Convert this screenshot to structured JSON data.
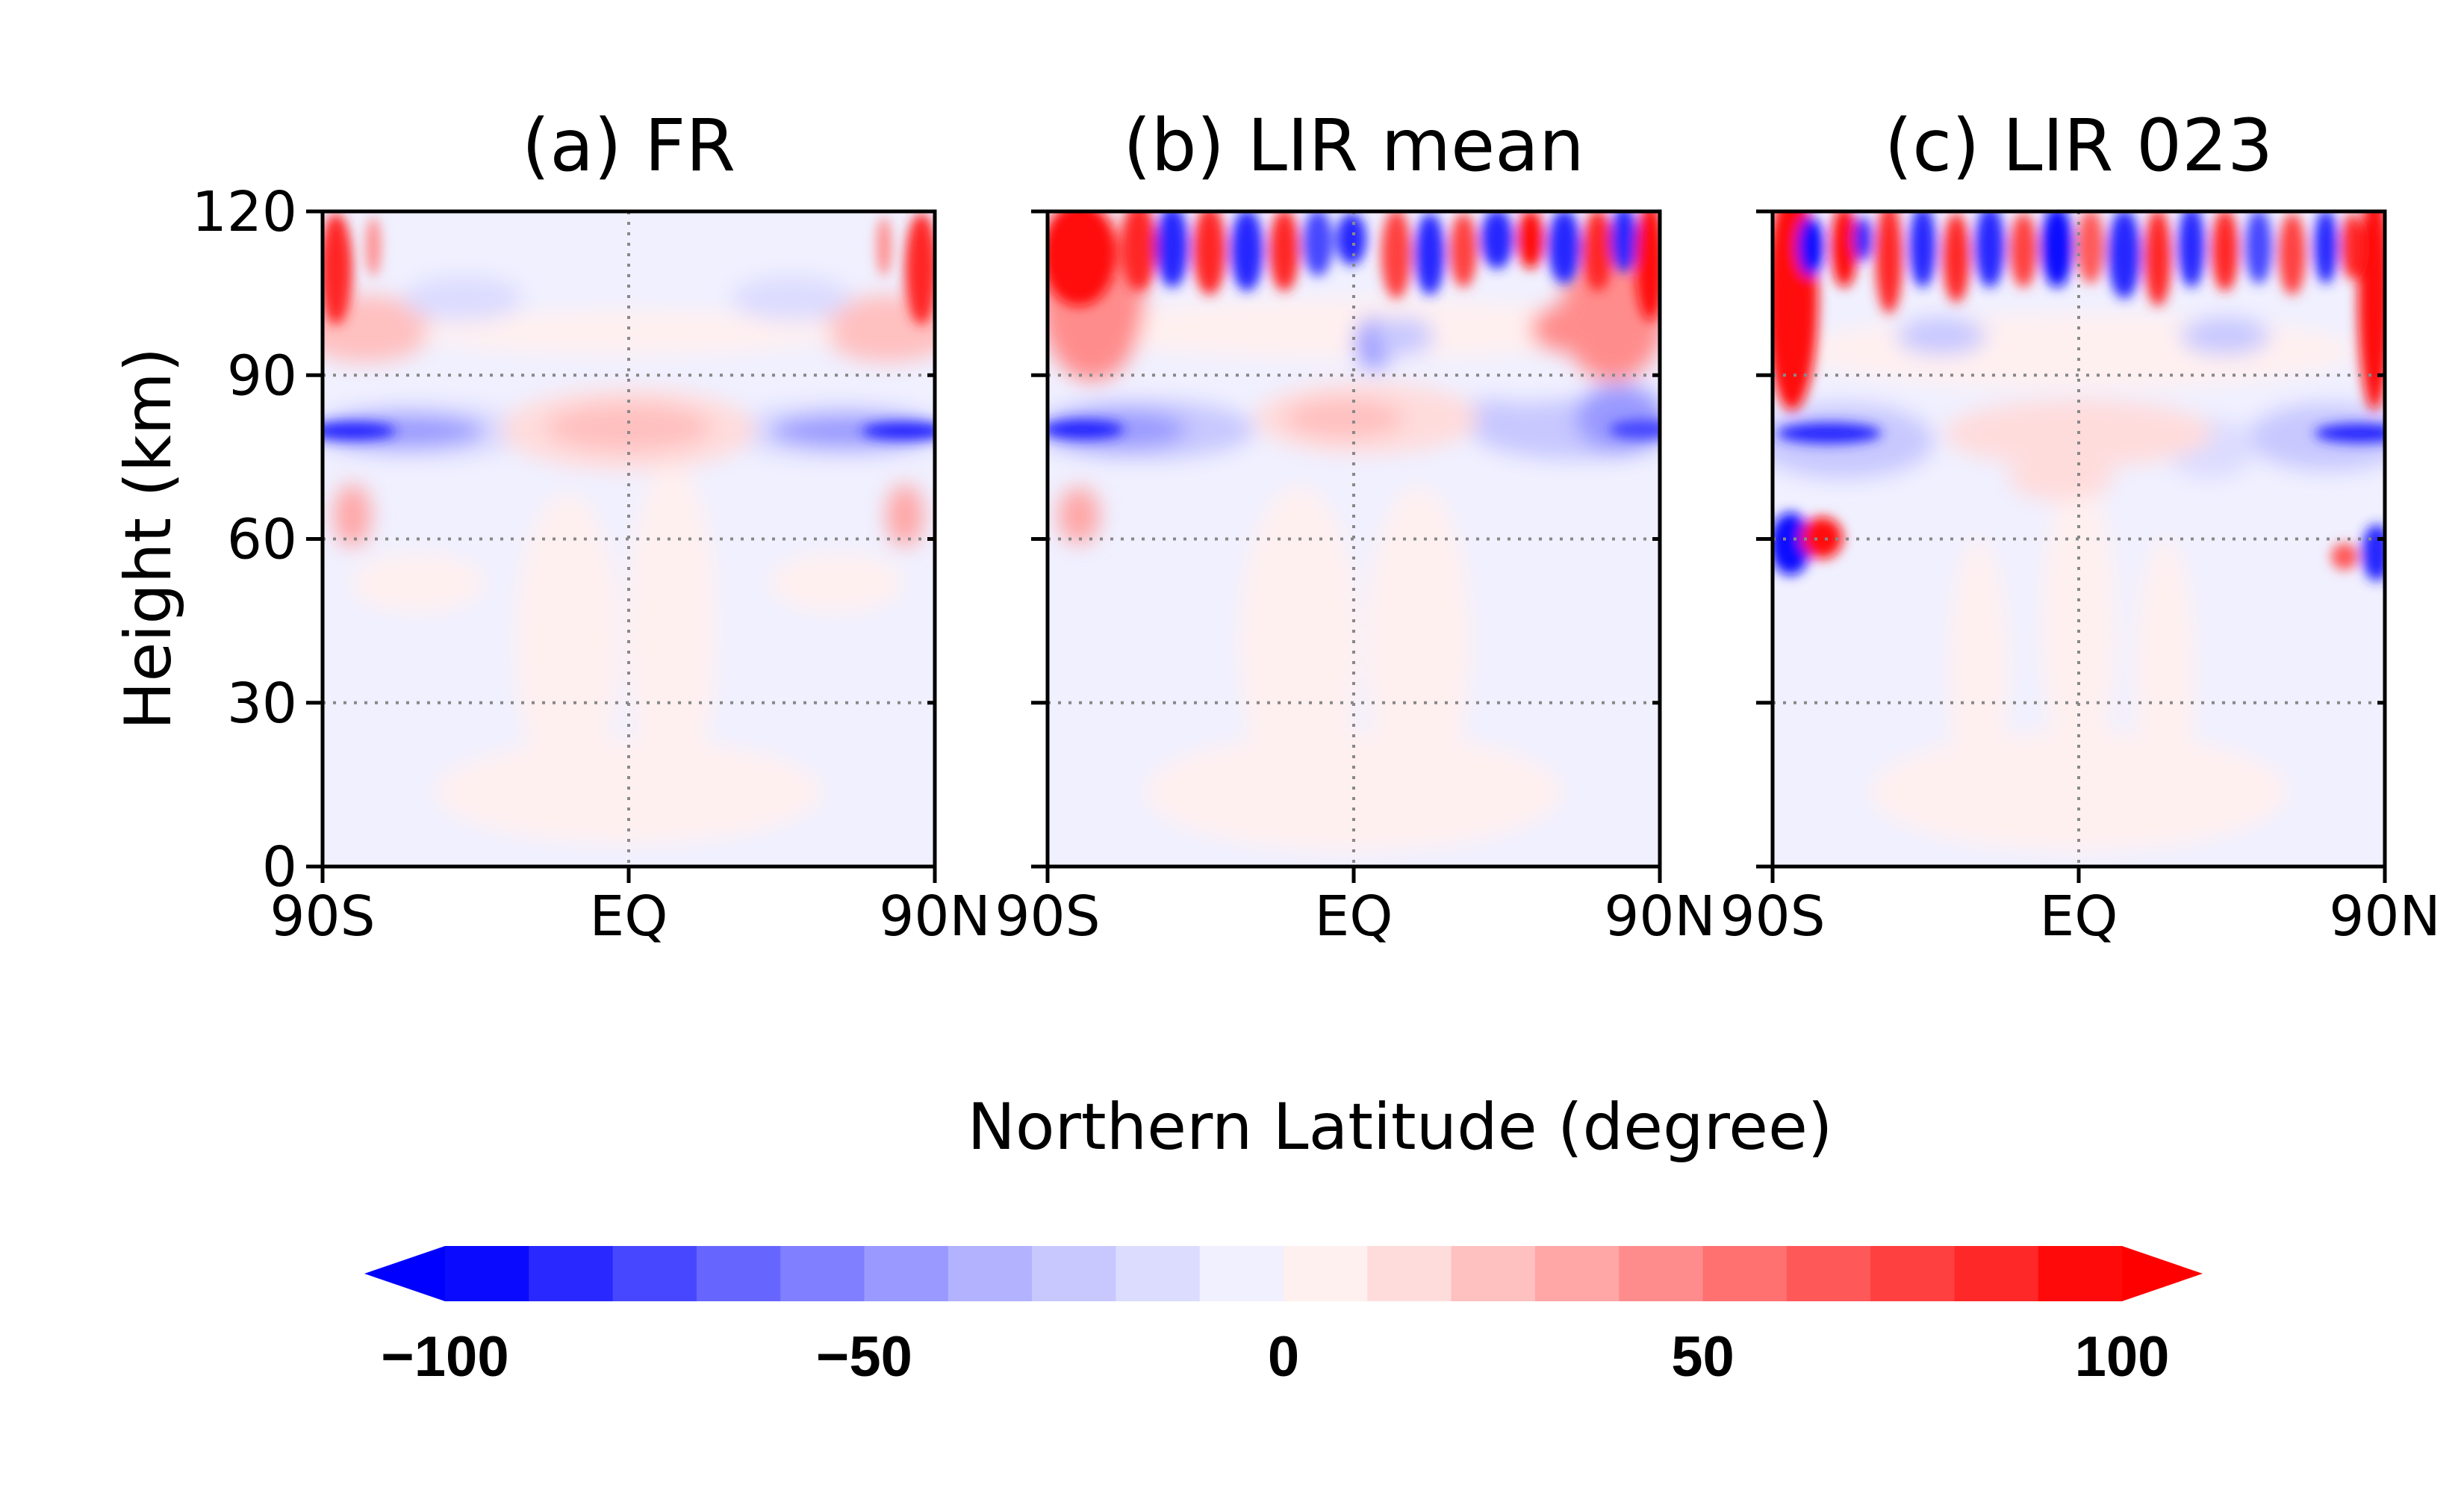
{
  "chart_data": [
    {
      "type": "heatmap",
      "title": "(a) FR",
      "ylabel": "Height (km)",
      "xlim": [
        -90,
        90
      ],
      "ylim": [
        0,
        120
      ],
      "x_ticks": [
        -90,
        0,
        90
      ],
      "x_tick_labels": [
        "90S",
        "EQ",
        "90N"
      ],
      "y_ticks": [
        0,
        30,
        60,
        90,
        120
      ],
      "y_tick_labels": [
        "0",
        "30",
        "60",
        "90",
        "120"
      ],
      "grid": true,
      "features": [
        {
          "lat": 0,
          "height": 80,
          "value": 40
        },
        {
          "lat": -70,
          "height": 79,
          "value": -85
        },
        {
          "lat": 70,
          "height": 79,
          "value": -85
        },
        {
          "lat": -88,
          "height": 110,
          "value": 90
        },
        {
          "lat": 88,
          "height": 110,
          "value": 90
        },
        {
          "lat": -80,
          "height": 95,
          "value": 40
        },
        {
          "lat": 80,
          "height": 95,
          "value": 40
        },
        {
          "lat": -80,
          "height": 62,
          "value": 30
        },
        {
          "lat": 80,
          "height": 62,
          "value": 30
        },
        {
          "lat": 0,
          "height": 20,
          "value": 8
        }
      ]
    },
    {
      "type": "heatmap",
      "title": "(b) LIR mean",
      "xlim": [
        -90,
        90
      ],
      "ylim": [
        0,
        120
      ],
      "x_ticks": [
        -90,
        0,
        90
      ],
      "x_tick_labels": [
        "90S",
        "EQ",
        "90N"
      ],
      "y_ticks": [
        0,
        30,
        60,
        90,
        120
      ],
      "grid": true,
      "features": [
        {
          "lat": 10,
          "height": 81,
          "value": 40
        },
        {
          "lat": -70,
          "height": 80,
          "value": -70
        },
        {
          "lat": 75,
          "height": 80,
          "value": -70
        },
        {
          "lat": -85,
          "height": 110,
          "value": 100
        },
        {
          "lat": 85,
          "height": 110,
          "value": 100
        },
        {
          "lat": -60,
          "height": 110,
          "value": -80
        },
        {
          "lat": 30,
          "height": 110,
          "value": -80
        },
        {
          "lat": 60,
          "height": 110,
          "value": -90
        },
        {
          "lat": -85,
          "height": 62,
          "value": 40
        }
      ]
    },
    {
      "type": "heatmap",
      "title": "(c) LIR 023",
      "xlim": [
        -90,
        90
      ],
      "ylim": [
        0,
        120
      ],
      "x_ticks": [
        -90,
        0,
        90
      ],
      "x_tick_labels": [
        "90S",
        "EQ",
        "90N"
      ],
      "y_ticks": [
        0,
        30,
        60,
        90,
        120
      ],
      "grid": true,
      "features": [
        {
          "lat": 0,
          "height": 80,
          "value": 30
        },
        {
          "lat": -75,
          "height": 79,
          "value": -85
        },
        {
          "lat": 75,
          "height": 79,
          "value": -85
        },
        {
          "lat": -85,
          "height": 105,
          "value": 100
        },
        {
          "lat": 88,
          "height": 105,
          "value": 100
        },
        {
          "lat": -85,
          "height": 60,
          "value": -100
        },
        {
          "lat": -78,
          "height": 60,
          "value": 100
        },
        {
          "lat": 85,
          "height": 60,
          "value": -90
        },
        {
          "lat": 78,
          "height": 58,
          "value": 60
        }
      ]
    }
  ],
  "xlabel": "Northern Latitude (degree)",
  "colorbar": {
    "min": -100,
    "max": 100,
    "step": 10,
    "extend": "both",
    "tick_values": [
      -100,
      -50,
      0,
      50,
      100
    ],
    "tick_labels": [
      "−100",
      "−50",
      "0",
      "50",
      "100"
    ],
    "colors": [
      "#0a0aff",
      "#2828ff",
      "#4747ff",
      "#6666ff",
      "#7f7fff",
      "#9999ff",
      "#b2b2ff",
      "#c8c8ff",
      "#dcdcff",
      "#f0f0ff",
      "#fff0f0",
      "#ffdcdc",
      "#ffc0c0",
      "#ffa6a6",
      "#ff8c8c",
      "#ff7070",
      "#ff5858",
      "#ff4040",
      "#ff2828",
      "#ff0a0a"
    ],
    "under_color": "#0000ff",
    "over_color": "#ff0000"
  }
}
